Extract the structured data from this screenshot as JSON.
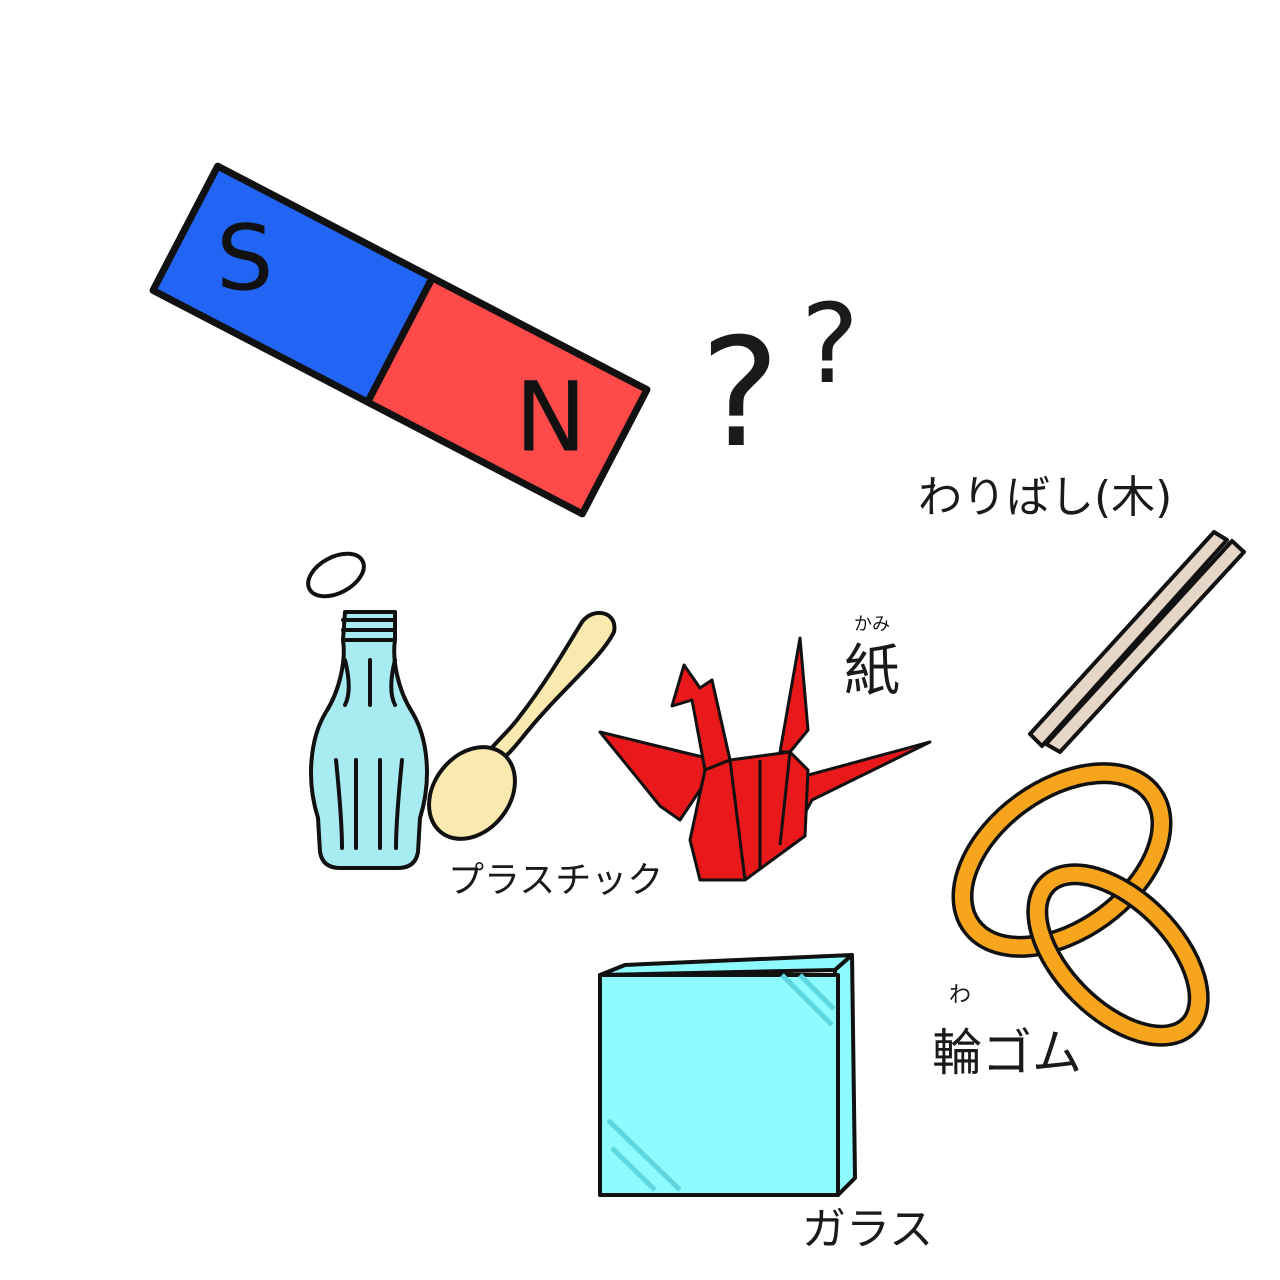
{
  "colors": {
    "magnet_south": "#2265f5",
    "magnet_north": "#ff4a4a",
    "bottle": "#a8ecf2",
    "spoon": "#fbeab0",
    "crane": "#e8181b",
    "chopsticks": "#e6d6c8",
    "rubber_band": "#f6a51d",
    "glass": "#8efbff",
    "outline": "#111111"
  },
  "magnet": {
    "south_label": "S",
    "north_label": "N"
  },
  "question_marks": [
    "?",
    "?"
  ],
  "labels": {
    "plastic": "プラスチック",
    "paper": "紙",
    "paper_reading": "かみ",
    "chopsticks": "わりばし(木)",
    "rubber_band": "輪ゴム",
    "rubber_band_reading": "わ",
    "glass": "ガラス"
  },
  "icons": [
    "bar-magnet-icon",
    "question-mark-icon",
    "plastic-bottle-icon",
    "plastic-spoon-icon",
    "paper-crane-icon",
    "chopsticks-icon",
    "rubber-band-icon",
    "glass-block-icon"
  ]
}
